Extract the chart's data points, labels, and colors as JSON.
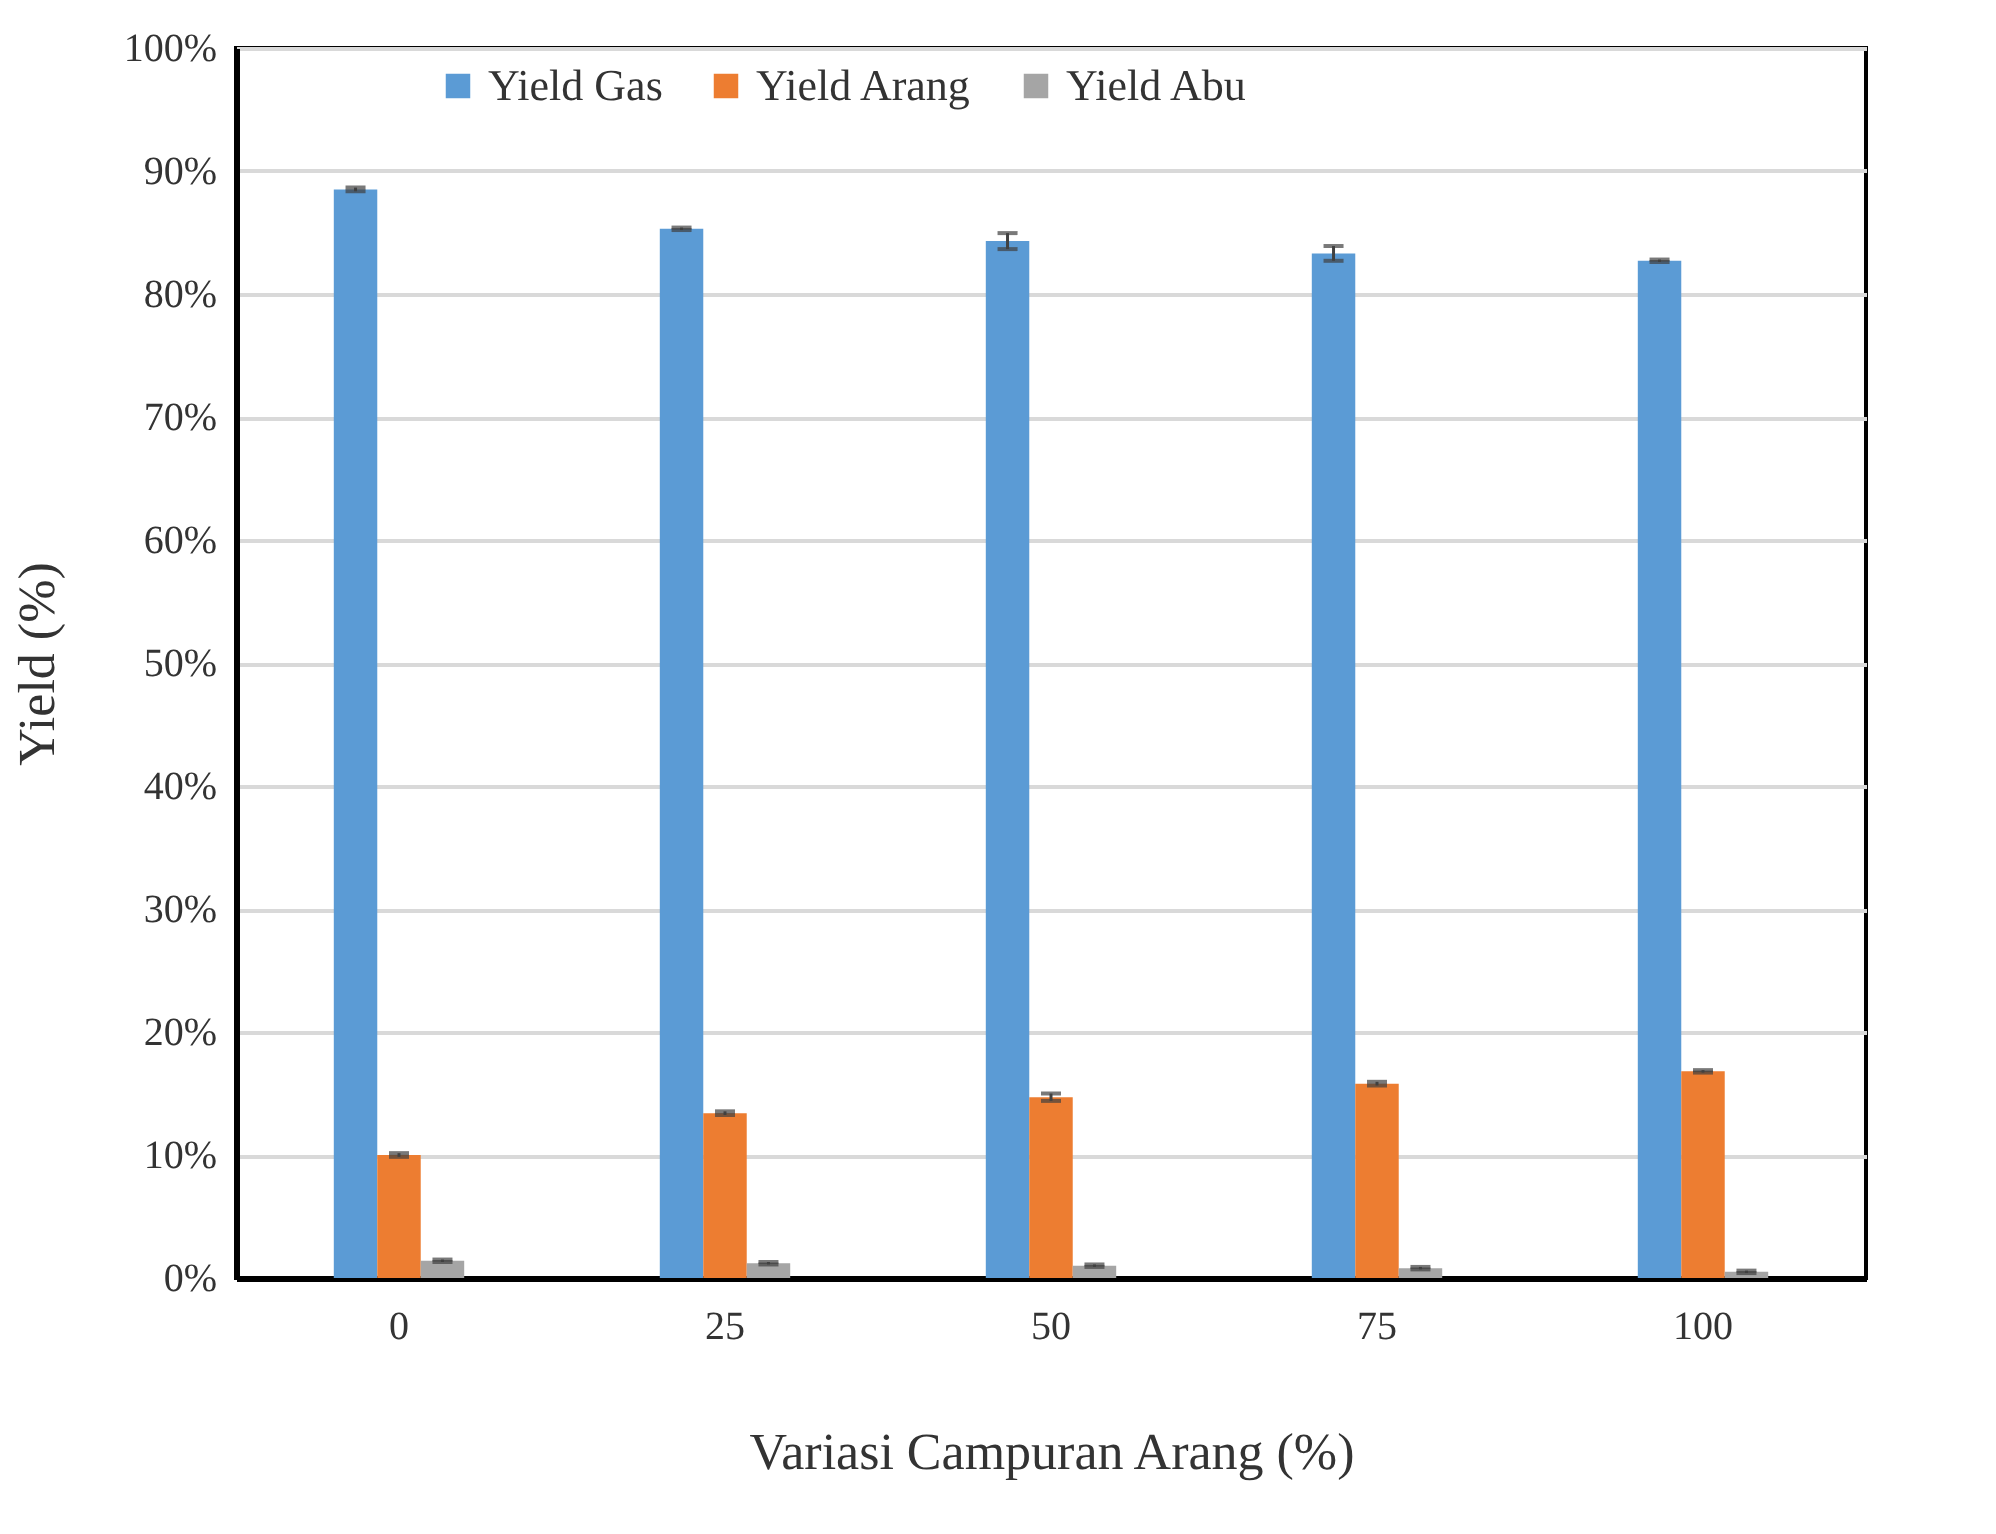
{
  "chart_data": {
    "type": "bar",
    "xlabel": "Variasi Campuran Arang (%)",
    "ylabel": "Yield (%)",
    "categories": [
      "0",
      "25",
      "50",
      "75",
      "100"
    ],
    "series": [
      {
        "name": "Yield Gas",
        "color": "#5b9bd5",
        "values": [
          88.5,
          85.3,
          84.3,
          83.3,
          82.7
        ],
        "errors": [
          0.15,
          0.1,
          0.65,
          0.6,
          0.1
        ]
      },
      {
        "name": "Yield Arang",
        "color": "#ed7d31",
        "values": [
          10.0,
          13.4,
          14.7,
          15.8,
          16.8
        ],
        "errors": [
          0.15,
          0.15,
          0.3,
          0.15,
          0.1
        ]
      },
      {
        "name": "Yield Abu",
        "color": "#a5a5a5",
        "values": [
          1.4,
          1.2,
          1.0,
          0.8,
          0.5
        ],
        "errors": [
          0.1,
          0.1,
          0.1,
          0.1,
          0.1
        ]
      }
    ],
    "ylim": [
      0,
      100
    ],
    "yticks": [
      {
        "value": 0,
        "label": "0%"
      },
      {
        "value": 10,
        "label": "10%"
      },
      {
        "value": 20,
        "label": "20%"
      },
      {
        "value": 30,
        "label": "30%"
      },
      {
        "value": 40,
        "label": "40%"
      },
      {
        "value": 50,
        "label": "50%"
      },
      {
        "value": 60,
        "label": "60%"
      },
      {
        "value": 70,
        "label": "70%"
      },
      {
        "value": 80,
        "label": "80%"
      },
      {
        "value": 90,
        "label": "90%"
      },
      {
        "value": 100,
        "label": "100%"
      }
    ],
    "grid": "y",
    "legend": "top"
  }
}
